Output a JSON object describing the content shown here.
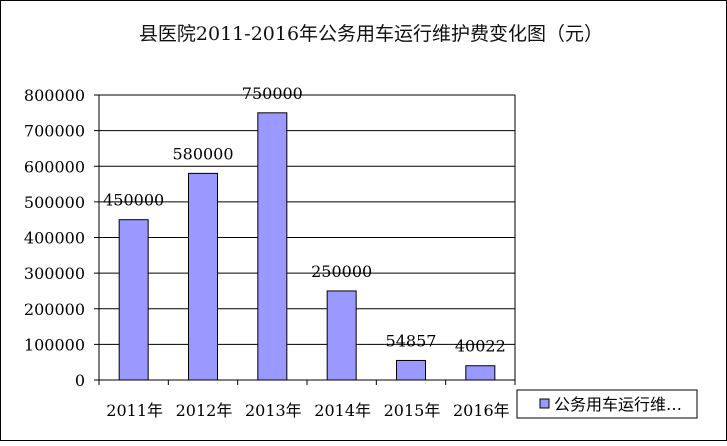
{
  "chart_data": {
    "type": "bar",
    "title": "县医院2011-2016年公务用车运行维护费变化图（元）",
    "categories": [
      "2011年",
      "2012年",
      "2013年",
      "2014年",
      "2015年",
      "2016年"
    ],
    "series": [
      {
        "name": "公务用车运行维…",
        "values": [
          450000,
          580000,
          750000,
          250000,
          54857,
          40022
        ]
      }
    ],
    "data_labels": [
      "450000",
      "580000",
      "750000",
      "250000",
      "54857",
      "40022"
    ],
    "ylim": [
      0,
      800000
    ],
    "yticks": [
      "0",
      "100000",
      "200000",
      "300000",
      "400000",
      "500000",
      "600000",
      "700000",
      "800000"
    ],
    "grid": "horizontal",
    "legend_position": "bottom-right",
    "colors": {
      "bar": "#9999ff",
      "bar_border": "#000000",
      "grid": "#000000"
    }
  }
}
